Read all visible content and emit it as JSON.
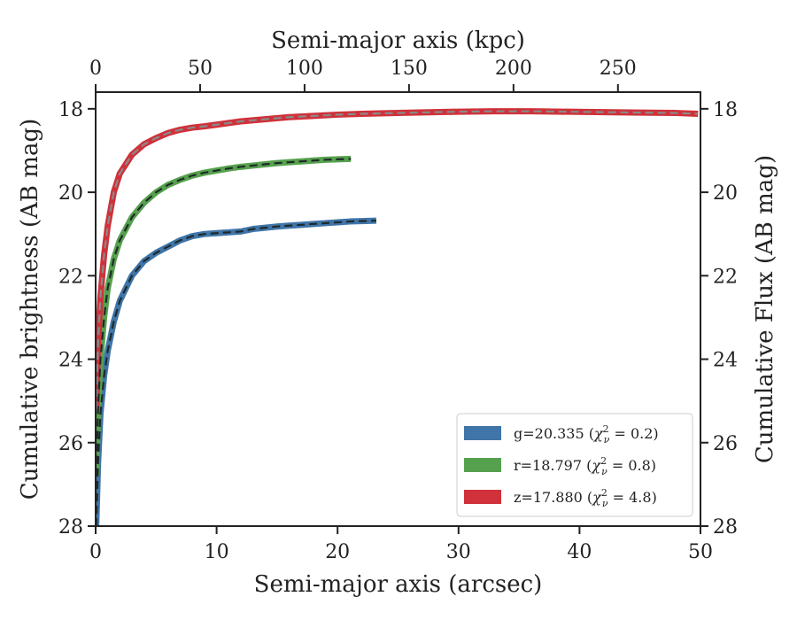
{
  "chart_data": {
    "type": "line",
    "xlabel": "Semi-major axis (arcsec)",
    "xlabel_top": "Semi-major axis (kpc)",
    "ylabel": "Cumulative brightness (AB mag)",
    "ylabel_right": "Cumulative Flux (AB mag)",
    "xlim": [
      0,
      50
    ],
    "ylim": [
      28,
      17.6
    ],
    "x_ticks": [
      0,
      10,
      20,
      30,
      40,
      50
    ],
    "x_top_ticks_kpc": [
      0,
      50,
      100,
      150,
      200,
      250
    ],
    "kpc_per_arcsec": 5.79,
    "y_ticks": [
      18,
      20,
      22,
      24,
      26,
      28
    ],
    "legend_position": "lower right",
    "grid": false,
    "series": [
      {
        "name": "g=20.335 (χ²ν = 0.2)",
        "label_main": "g=20.335 (",
        "label_sub": "ν",
        "label_tail": " = 0.2)",
        "color": "#3f75a8",
        "x": [
          0.05,
          0.2,
          0.4,
          0.7,
          1.0,
          1.5,
          2.0,
          3.0,
          4.0,
          5.0,
          6.0,
          7.0,
          8.0,
          9.0,
          10.0,
          11.0,
          12.0,
          13.0,
          14.0,
          15.0,
          16.0,
          17.0,
          18.0,
          19.0,
          20.0,
          21.0,
          22.0,
          23.2
        ],
        "y": [
          28.0,
          26.5,
          25.3,
          24.4,
          23.8,
          23.1,
          22.6,
          22.0,
          21.65,
          21.45,
          21.3,
          21.15,
          21.05,
          21.0,
          20.98,
          20.96,
          20.94,
          20.88,
          20.85,
          20.82,
          20.8,
          20.78,
          20.76,
          20.74,
          20.72,
          20.7,
          20.69,
          20.68
        ]
      },
      {
        "name": "r=18.797 (χ²ν = 0.8)",
        "label_main": "r=18.797 (",
        "label_sub": "ν",
        "label_tail": " = 0.8)",
        "color": "#56a14d",
        "x": [
          0.05,
          0.2,
          0.4,
          0.7,
          1.0,
          1.5,
          2.0,
          3.0,
          4.0,
          5.0,
          6.0,
          7.0,
          8.0,
          9.0,
          10.0,
          11.0,
          12.0,
          13.0,
          14.0,
          15.0,
          16.0,
          17.0,
          18.0,
          19.0,
          20.0,
          21.1
        ],
        "y": [
          26.8,
          25.2,
          24.0,
          23.0,
          22.3,
          21.6,
          21.15,
          20.6,
          20.25,
          20.0,
          19.82,
          19.7,
          19.6,
          19.53,
          19.48,
          19.43,
          19.39,
          19.36,
          19.33,
          19.3,
          19.28,
          19.26,
          19.24,
          19.22,
          19.21,
          19.2
        ]
      },
      {
        "name": "z=17.880 (χ²ν = 4.8)",
        "label_main": "z=17.880 (",
        "label_sub": "ν",
        "label_tail": " = 4.8)",
        "color": "#d0313a",
        "x": [
          0.05,
          0.2,
          0.4,
          0.7,
          1.0,
          1.5,
          2.0,
          3.0,
          4.0,
          5.0,
          6.0,
          7.0,
          8.0,
          9.0,
          10.0,
          12.0,
          14.0,
          16.0,
          18.0,
          20.0,
          22.0,
          25.0,
          28.0,
          30.0,
          33.0,
          36.0,
          39.0,
          42.0,
          45.0,
          48.0,
          49.8
        ],
        "y": [
          25.2,
          23.6,
          22.5,
          21.5,
          20.8,
          20.0,
          19.55,
          19.1,
          18.85,
          18.7,
          18.58,
          18.5,
          18.45,
          18.42,
          18.38,
          18.3,
          18.25,
          18.2,
          18.17,
          18.14,
          18.12,
          18.1,
          18.08,
          18.07,
          18.06,
          18.06,
          18.07,
          18.08,
          18.09,
          18.1,
          18.12
        ]
      }
    ]
  }
}
